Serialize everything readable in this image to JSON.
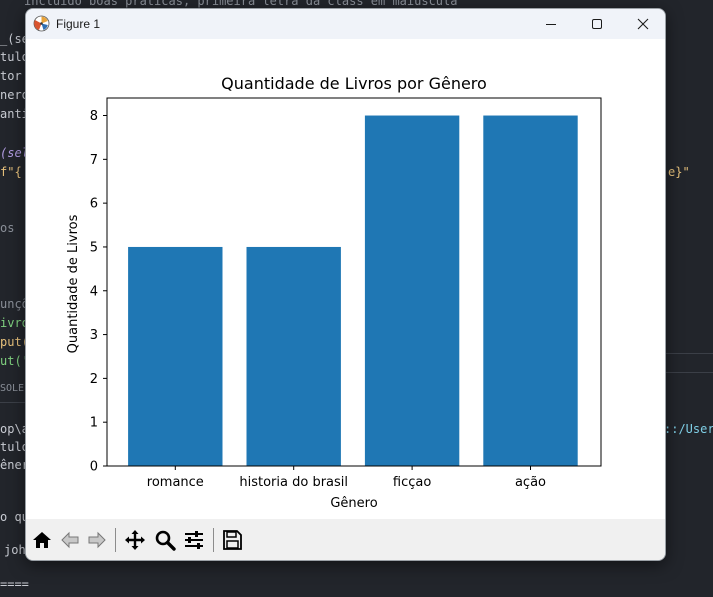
{
  "background_code": {
    "line1": "incluido boas praticas, primeira letra da class em maiuscula",
    "line2": "_(sel",
    "line3": "tulo",
    "line4": "tor",
    "line5": "nero",
    "line6": "anti",
    "line7": "(sel",
    "line8": "f\"{",
    "line9": "e}\"",
    "line10": "os",
    "line11": "unçõ",
    "line12": "ivro",
    "line13": "put(",
    "line14": "ut('",
    "line15": "SOLE",
    "line16": "op\\a",
    "line17": "tulo",
    "line18": "ênero",
    "line19": "::/Users",
    "line20": "o que",
    "line21": "joh",
    "line22": "===="
  },
  "window": {
    "title": "Figure 1"
  },
  "chart_data": {
    "type": "bar",
    "title": "Quantidade de Livros por Gênero",
    "xlabel": "Gênero",
    "ylabel": "Quantidade de Livros",
    "categories": [
      "romance",
      "historia do brasil",
      "ficçao",
      "ação"
    ],
    "values": [
      5,
      5,
      8,
      8
    ],
    "ylim": [
      0,
      8.4
    ],
    "yticks": [
      "0",
      "1",
      "2",
      "3",
      "4",
      "5",
      "6",
      "7",
      "8"
    ],
    "bar_color": "#1f77b4",
    "grid": false
  },
  "toolbar": {
    "buttons": [
      "home-icon",
      "back-icon",
      "forward-icon",
      "pan-icon",
      "zoom-icon",
      "configure-subplots-icon",
      "save-icon"
    ]
  }
}
